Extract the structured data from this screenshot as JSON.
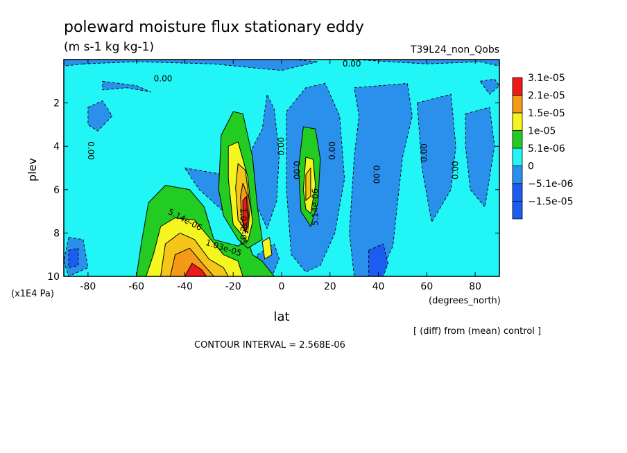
{
  "chart_data": {
    "type": "heatmap",
    "title": "poleward moisture flux stationary eddy",
    "units": "(m s-1 kg kg-1)",
    "run_label": "T39L24_non_Qobs",
    "xlabel": "lat",
    "x_units": "(degrees_north)",
    "ylabel": "plev",
    "y_units": "(x1E4 Pa)",
    "x_ticks": [
      "-80",
      "-60",
      "-40",
      "-20",
      "0",
      "20",
      "40",
      "60",
      "80"
    ],
    "y_ticks": [
      "2",
      "4",
      "6",
      "8",
      "10"
    ],
    "xlim": [
      -90,
      90
    ],
    "ylim": [
      0,
      10
    ],
    "y_inverted": true,
    "diff_note": "[ (diff) from (mean) control ]",
    "contour_interval": "CONTOUR INTERVAL = 2.568E-06",
    "colorbar": {
      "labels": [
        "3.1e-05",
        "2.1e-05",
        "1.5e-05",
        "1e-05",
        "5.1e-06",
        "0",
        "−5.1e-06",
        "−1.5e-05"
      ],
      "colors": [
        "#ee1a1a",
        "#f59a17",
        "#f5f51f",
        "#22cc22",
        "#22f5f5",
        "#2b90eb",
        "#1c5cf0",
        "#1c5cf0"
      ]
    },
    "contour_labels": [
      {
        "text": "0.00",
        "lat": -49,
        "plev": 0.9,
        "rotate": 0
      },
      {
        "text": "0.00",
        "lat": 29,
        "plev": 0.2,
        "rotate": 0
      },
      {
        "text": "0.00",
        "lat": -79,
        "plev": 4.2,
        "rotate": 90
      },
      {
        "text": "0.00",
        "lat": 0,
        "plev": 4.0,
        "rotate": -90
      },
      {
        "text": "0.00",
        "lat": 6,
        "plev": 5.1,
        "rotate": 90
      },
      {
        "text": "0.00",
        "lat": 21,
        "plev": 4.2,
        "rotate": -90
      },
      {
        "text": "0.00",
        "lat": 39,
        "plev": 5.3,
        "rotate": 90
      },
      {
        "text": "0.00",
        "lat": 59,
        "plev": 4.3,
        "rotate": -90
      },
      {
        "text": "0.00",
        "lat": 72,
        "plev": 5.1,
        "rotate": -90
      },
      {
        "text": "5.14e-06",
        "lat": -40,
        "plev": 7.4,
        "rotate": 28
      },
      {
        "text": "1.03e-05",
        "lat": -24,
        "plev": 8.7,
        "rotate": 18
      },
      {
        "text": "1.03e-05",
        "lat": -16,
        "plev": 7.7,
        "rotate": 90
      },
      {
        "text": "5.14e-06",
        "lat": 14,
        "plev": 6.8,
        "rotate": -90
      }
    ],
    "regions": [
      {
        "level": 0,
        "points": [
          [
            -90,
            0
          ],
          [
            90,
            0
          ],
          [
            90,
            10
          ],
          [
            -90,
            10
          ]
        ]
      },
      {
        "level": -1,
        "points": [
          [
            -82,
            0.2
          ],
          [
            -60,
            0.1
          ],
          [
            -28,
            0.2
          ],
          [
            -10,
            0.4
          ],
          [
            0,
            0.5
          ],
          [
            15,
            0.1
          ],
          [
            5,
            0
          ],
          [
            30,
            0
          ],
          [
            60,
            0.2
          ],
          [
            82,
            0.1
          ],
          [
            90,
            0.3
          ],
          [
            90,
            0
          ],
          [
            -90,
            0
          ],
          [
            -90,
            0.3
          ]
        ]
      },
      {
        "level": -1,
        "points": [
          [
            -74,
            1.0
          ],
          [
            -60,
            1.2
          ],
          [
            -54,
            1.5
          ],
          [
            -64,
            1.3
          ],
          [
            -74,
            1.4
          ]
        ]
      },
      {
        "level": -1,
        "points": [
          [
            -80,
            2.2
          ],
          [
            -74,
            1.9
          ],
          [
            -70,
            2.6
          ],
          [
            -76,
            3.3
          ],
          [
            -80,
            3.0
          ]
        ]
      },
      {
        "level": -1,
        "points": [
          [
            -88,
            8.2
          ],
          [
            -82,
            8.3
          ],
          [
            -80,
            9.6
          ],
          [
            -88,
            10
          ],
          [
            -90,
            9.3
          ]
        ]
      },
      {
        "level": -1,
        "points": [
          [
            -14,
            4.5
          ],
          [
            -8,
            3.2
          ],
          [
            -6,
            1.6
          ],
          [
            -3,
            2.3
          ],
          [
            -1,
            4.4
          ],
          [
            -2,
            6.5
          ],
          [
            -6,
            7.8
          ],
          [
            -10,
            6.8
          ],
          [
            -12,
            5.5
          ]
        ]
      },
      {
        "level": -1,
        "points": [
          [
            -40,
            5.0
          ],
          [
            -24,
            5.3
          ],
          [
            -20,
            6.2
          ],
          [
            -24,
            7.0
          ],
          [
            -34,
            6.0
          ]
        ]
      },
      {
        "level": -1,
        "points": [
          [
            -10,
            9.0
          ],
          [
            -3,
            8.5
          ],
          [
            -1,
            9.2
          ],
          [
            -4,
            10
          ],
          [
            -10,
            10
          ]
        ]
      },
      {
        "level": -1,
        "points": [
          [
            2,
            2.4
          ],
          [
            10,
            1.3
          ],
          [
            18,
            1.1
          ],
          [
            24,
            2.6
          ],
          [
            26,
            5.5
          ],
          [
            22,
            8.0
          ],
          [
            16,
            9.5
          ],
          [
            10,
            9.8
          ],
          [
            4,
            9.0
          ],
          [
            2,
            6.0
          ]
        ]
      },
      {
        "level": -1,
        "points": [
          [
            30,
            1.3
          ],
          [
            52,
            1.1
          ],
          [
            54,
            2.6
          ],
          [
            50,
            4.5
          ],
          [
            48,
            6.5
          ],
          [
            46,
            8.6
          ],
          [
            40,
            10
          ],
          [
            30,
            10
          ],
          [
            28,
            8.0
          ],
          [
            30,
            4.5
          ],
          [
            32,
            2.6
          ]
        ]
      },
      {
        "level": -1,
        "points": [
          [
            56,
            2.0
          ],
          [
            70,
            1.6
          ],
          [
            72,
            4.0
          ],
          [
            70,
            6.0
          ],
          [
            62,
            7.5
          ],
          [
            58,
            5.0
          ]
        ]
      },
      {
        "level": -1,
        "points": [
          [
            76,
            2.5
          ],
          [
            86,
            2.2
          ],
          [
            88,
            4.0
          ],
          [
            84,
            6.8
          ],
          [
            78,
            6.0
          ],
          [
            76,
            4.0
          ]
        ]
      },
      {
        "level": -1,
        "points": [
          [
            82,
            1.0
          ],
          [
            88,
            0.9
          ],
          [
            90,
            1.2
          ],
          [
            86,
            1.6
          ]
        ]
      },
      {
        "level": -2,
        "points": [
          [
            36,
            8.8
          ],
          [
            42,
            8.5
          ],
          [
            44,
            9.4
          ],
          [
            42,
            10
          ],
          [
            36,
            10
          ]
        ]
      },
      {
        "level": -2,
        "points": [
          [
            -88,
            8.8
          ],
          [
            -84,
            8.7
          ],
          [
            -84,
            9.5
          ],
          [
            -88,
            9.6
          ]
        ]
      },
      {
        "level": 1,
        "points": [
          [
            -60,
            10
          ],
          [
            -58,
            8.5
          ],
          [
            -55,
            6.6
          ],
          [
            -48,
            5.8
          ],
          [
            -38,
            6.0
          ],
          [
            -32,
            6.8
          ],
          [
            -28,
            8.3
          ],
          [
            -18,
            8.6
          ],
          [
            -14,
            8.3
          ],
          [
            -12,
            9.0
          ],
          [
            -8,
            9.3
          ],
          [
            -3,
            10
          ]
        ]
      },
      {
        "level": 1,
        "points": [
          [
            -26,
            6.0
          ],
          [
            -25,
            3.5
          ],
          [
            -20,
            2.4
          ],
          [
            -16,
            2.5
          ],
          [
            -12,
            4.5
          ],
          [
            -10,
            6.8
          ],
          [
            -8,
            8.3
          ],
          [
            -14,
            8.7
          ],
          [
            -18,
            8.3
          ],
          [
            -24,
            7.2
          ]
        ]
      },
      {
        "level": 1,
        "points": [
          [
            7,
            5.0
          ],
          [
            9,
            3.1
          ],
          [
            14,
            3.2
          ],
          [
            16,
            4.6
          ],
          [
            15,
            6.6
          ],
          [
            12,
            7.7
          ],
          [
            8,
            7.0
          ]
        ]
      },
      {
        "level": 2,
        "points": [
          [
            -56,
            10
          ],
          [
            -53,
            9.0
          ],
          [
            -50,
            7.7
          ],
          [
            -44,
            7.3
          ],
          [
            -36,
            7.4
          ],
          [
            -30,
            8.2
          ],
          [
            -24,
            9.0
          ],
          [
            -18,
            9.3
          ],
          [
            -16,
            10
          ]
        ]
      },
      {
        "level": 2,
        "points": [
          [
            -22,
            5.5
          ],
          [
            -22,
            4.0
          ],
          [
            -18,
            3.8
          ],
          [
            -14,
            5.4
          ],
          [
            -12,
            7.5
          ],
          [
            -14,
            8.4
          ],
          [
            -20,
            7.6
          ]
        ]
      },
      {
        "level": 2,
        "points": [
          [
            9,
            6.0
          ],
          [
            10,
            4.5
          ],
          [
            13,
            4.6
          ],
          [
            14,
            5.8
          ],
          [
            12,
            7.1
          ],
          [
            10,
            6.9
          ]
        ]
      },
      {
        "level": 2,
        "points": [
          [
            -8,
            8.4
          ],
          [
            -5,
            8.2
          ],
          [
            -4,
            9.0
          ],
          [
            -7,
            9.2
          ]
        ]
      },
      {
        "level": 3,
        "points": [
          [
            -50,
            10
          ],
          [
            -48,
            8.5
          ],
          [
            -42,
            8.0
          ],
          [
            -36,
            8.3
          ],
          [
            -30,
            9.2
          ],
          [
            -24,
            9.6
          ],
          [
            -22,
            10
          ]
        ]
      },
      {
        "level": 3,
        "points": [
          [
            -19,
            5.9
          ],
          [
            -18,
            4.8
          ],
          [
            -15,
            5.1
          ],
          [
            -13,
            6.8
          ],
          [
            -14,
            8.0
          ],
          [
            -18,
            7.4
          ]
        ]
      },
      {
        "level": 3,
        "points": [
          [
            10,
            5.3
          ],
          [
            12,
            5.0
          ],
          [
            12,
            6.3
          ],
          [
            10,
            6.5
          ]
        ]
      },
      {
        "level": 4,
        "points": [
          [
            -46,
            10
          ],
          [
            -44,
            9.0
          ],
          [
            -38,
            8.7
          ],
          [
            -32,
            9.5
          ],
          [
            -28,
            10
          ]
        ]
      },
      {
        "level": 4,
        "points": [
          [
            -17,
            6.3
          ],
          [
            -16,
            5.7
          ],
          [
            -14,
            6.3
          ],
          [
            -13.5,
            7.5
          ],
          [
            -15,
            8.0
          ],
          [
            -16.5,
            7.3
          ]
        ]
      },
      {
        "level": 5,
        "points": [
          [
            -40,
            10
          ],
          [
            -37,
            9.4
          ],
          [
            -33,
            9.7
          ],
          [
            -31,
            10
          ]
        ]
      },
      {
        "level": 5,
        "points": [
          [
            -16,
            6.5
          ],
          [
            -14.5,
            6.3
          ],
          [
            -14,
            7.4
          ],
          [
            -15,
            8.0
          ],
          [
            -16,
            7.5
          ]
        ]
      }
    ],
    "level_colors": {
      "-2": "#1c5cf0",
      "-1": "#2b90eb",
      "0": "#22f5f5",
      "1": "#22cc22",
      "2": "#f5f51f",
      "3": "#f5c51a",
      "4": "#f59a17",
      "5": "#ee1a1a"
    }
  }
}
